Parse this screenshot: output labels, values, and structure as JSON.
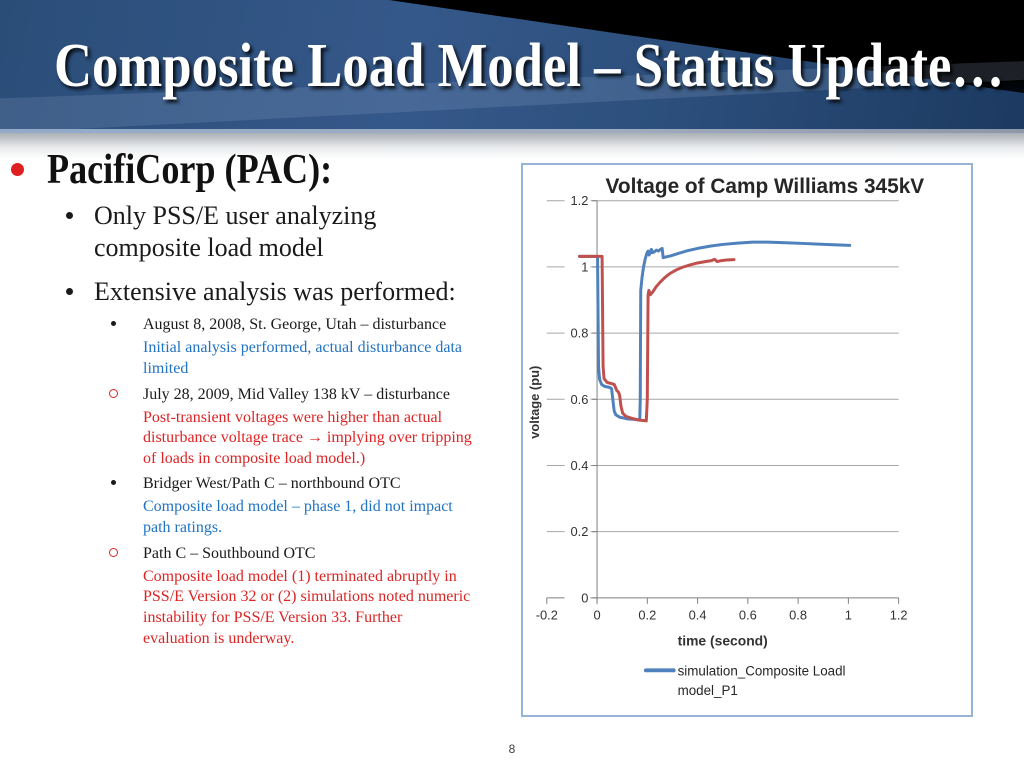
{
  "slide": {
    "title": "Composite Load Model – Status Update…",
    "page_number": "8"
  },
  "content": {
    "bullets": [
      {
        "level": 1,
        "bullet": "disc-red",
        "color": "black",
        "lines": [
          "PacifiCorp (PAC):"
        ]
      },
      {
        "level": 2,
        "bullet": "disc-black",
        "color": "black",
        "lines": [
          "Only PSS/E user analyzing",
          "composite load model"
        ]
      },
      {
        "level": 2,
        "bullet": "disc-black",
        "color": "black",
        "lines": [
          "Extensive analysis was performed:"
        ]
      },
      {
        "level": 3,
        "bullet": "disc-black",
        "color": "black",
        "lines": [
          "August 8, 2008, St. George, Utah – disturbance"
        ]
      },
      {
        "level": 3,
        "bullet": "none",
        "color": "blue",
        "lines": [
          "Initial analysis performed, actual disturbance data",
          "limited"
        ]
      },
      {
        "level": 3,
        "bullet": "circle-red",
        "color": "black",
        "lines": [
          "July 28, 2009, Mid Valley 138 kV – disturbance"
        ]
      },
      {
        "level": 3,
        "bullet": "none",
        "color": "red",
        "lines": [
          "Post-transient voltages were higher than actual",
          "disturbance voltage trace → implying over tripping",
          "of loads in composite load model.)"
        ]
      },
      {
        "level": 3,
        "bullet": "disc-black",
        "color": "black",
        "lines": [
          "Bridger West/Path C – northbound OTC"
        ]
      },
      {
        "level": 3,
        "bullet": "none",
        "color": "blue",
        "lines": [
          "Composite load model – phase 1, did not impact",
          "path ratings."
        ]
      },
      {
        "level": 3,
        "bullet": "circle-red",
        "color": "black",
        "lines": [
          "Path C – Southbound OTC"
        ]
      },
      {
        "level": 3,
        "bullet": "none",
        "color": "red",
        "lines": [
          "Composite load model  (1) terminated abruptly in",
          "PSS/E Version 32 or (2) simulations noted numeric",
          "instability for PSS/E Version 33.  Further",
          "evaluation is underway."
        ]
      }
    ]
  },
  "chart_data": {
    "type": "line",
    "title": "Voltage of Camp Williams 345kV",
    "xlabel": "time (second)",
    "ylabel": "voltage (pu)",
    "xlim": [
      -0.2,
      1.2
    ],
    "ylim": [
      0,
      1.2
    ],
    "x_tick_labels": [
      "-0.2",
      "0",
      "0.2",
      "0.4",
      "0.6",
      "0.8",
      "1",
      "1.2"
    ],
    "x_ticks": [
      -0.2,
      0,
      0.2,
      0.4,
      0.6,
      0.8,
      1,
      1.2
    ],
    "y_tick_labels": [
      "0",
      "0.2",
      "0.4",
      "0.6",
      "0.8",
      "1",
      "1.2"
    ],
    "y_ticks": [
      0,
      0.2,
      0.4,
      0.6,
      0.8,
      1,
      1.2
    ],
    "grid": "horizontal",
    "legend_position": "bottom",
    "legend": [
      {
        "series": 0,
        "label_lines": [
          "simulation_Composite Loadl",
          "model_P1"
        ]
      }
    ],
    "series": [
      {
        "name": "simulation_Composite Loadl model_P1",
        "color": "#4f81bd",
        "points": [
          [
            -0.07,
            1.032
          ],
          [
            0.002,
            1.032
          ],
          [
            0.006,
            0.7
          ],
          [
            0.01,
            0.66
          ],
          [
            0.018,
            0.645
          ],
          [
            0.03,
            0.639
          ],
          [
            0.05,
            0.636
          ],
          [
            0.058,
            0.632
          ],
          [
            0.062,
            0.605
          ],
          [
            0.068,
            0.565
          ],
          [
            0.075,
            0.553
          ],
          [
            0.09,
            0.546
          ],
          [
            0.12,
            0.541
          ],
          [
            0.15,
            0.539
          ],
          [
            0.17,
            0.537
          ],
          [
            0.172,
            0.6
          ],
          [
            0.174,
            0.93
          ],
          [
            0.179,
            0.968
          ],
          [
            0.185,
            1.0
          ],
          [
            0.192,
            1.025
          ],
          [
            0.199,
            1.043
          ],
          [
            0.203,
            1.048
          ],
          [
            0.207,
            1.036
          ],
          [
            0.212,
            1.044
          ],
          [
            0.216,
            1.053
          ],
          [
            0.221,
            1.043
          ],
          [
            0.229,
            1.046
          ],
          [
            0.236,
            1.051
          ],
          [
            0.244,
            1.048
          ],
          [
            0.252,
            1.053
          ],
          [
            0.259,
            1.056
          ],
          [
            0.263,
            1.028
          ],
          [
            0.272,
            1.03
          ],
          [
            0.29,
            1.033
          ],
          [
            0.32,
            1.04
          ],
          [
            0.36,
            1.049
          ],
          [
            0.4,
            1.056
          ],
          [
            0.45,
            1.063
          ],
          [
            0.5,
            1.068
          ],
          [
            0.56,
            1.072
          ],
          [
            0.62,
            1.075
          ],
          [
            0.68,
            1.075
          ],
          [
            0.75,
            1.073
          ],
          [
            0.82,
            1.071
          ],
          [
            0.88,
            1.069
          ],
          [
            0.94,
            1.067
          ],
          [
            1.005,
            1.065
          ]
        ]
      },
      {
        "name": "",
        "color": "#c0504d",
        "points": [
          [
            -0.07,
            1.032
          ],
          [
            0.02,
            1.032
          ],
          [
            0.024,
            0.7
          ],
          [
            0.028,
            0.662
          ],
          [
            0.04,
            0.651
          ],
          [
            0.055,
            0.648
          ],
          [
            0.068,
            0.645
          ],
          [
            0.073,
            0.637
          ],
          [
            0.078,
            0.627
          ],
          [
            0.085,
            0.622
          ],
          [
            0.09,
            0.612
          ],
          [
            0.095,
            0.58
          ],
          [
            0.102,
            0.558
          ],
          [
            0.115,
            0.548
          ],
          [
            0.14,
            0.542
          ],
          [
            0.17,
            0.537
          ],
          [
            0.196,
            0.535
          ],
          [
            0.2,
            0.6
          ],
          [
            0.203,
            0.915
          ],
          [
            0.206,
            0.929
          ],
          [
            0.212,
            0.916
          ],
          [
            0.222,
            0.925
          ],
          [
            0.235,
            0.94
          ],
          [
            0.25,
            0.953
          ],
          [
            0.27,
            0.968
          ],
          [
            0.29,
            0.98
          ],
          [
            0.315,
            0.991
          ],
          [
            0.34,
            0.999
          ],
          [
            0.37,
            1.006
          ],
          [
            0.4,
            1.012
          ],
          [
            0.43,
            1.016
          ],
          [
            0.455,
            1.019
          ],
          [
            0.468,
            1.023
          ],
          [
            0.478,
            1.016
          ],
          [
            0.495,
            1.019
          ],
          [
            0.515,
            1.021
          ],
          [
            0.545,
            1.022
          ]
        ]
      }
    ]
  },
  "colors": {
    "grid": "#a6a6a6",
    "axis": "#7f7f7f",
    "chart_text": "#333333",
    "chart_border": "#95b3d7",
    "note_blue": "#2173c2",
    "note_red": "#dd2424",
    "bullet_red": "#e02020"
  }
}
